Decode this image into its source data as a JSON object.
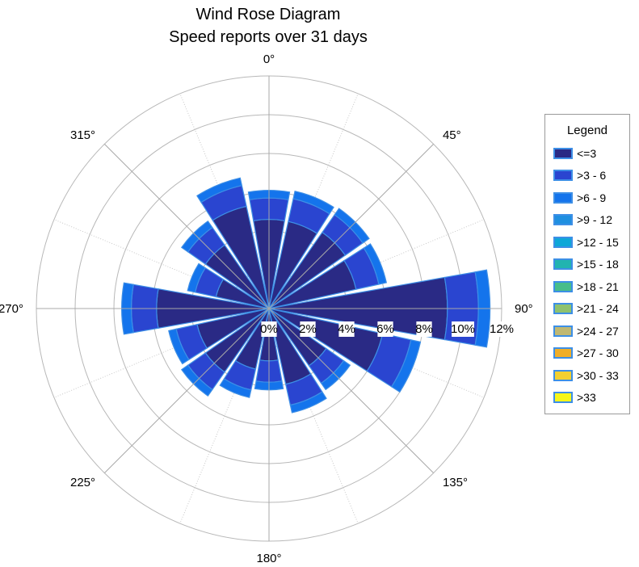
{
  "chart_data": {
    "type": "wind-rose",
    "title": "Wind Rose Diagram",
    "subtitle": "Speed reports over 31 days",
    "radial_ticks": [
      "0%",
      "2%",
      "4%",
      "6%",
      "8%",
      "10%",
      "12%"
    ],
    "radial_max": 12,
    "direction_labels": [
      {
        "angle": 0,
        "label": "0°"
      },
      {
        "angle": 45,
        "label": "45°"
      },
      {
        "angle": 90,
        "label": "90°"
      },
      {
        "angle": 135,
        "label": "135°"
      },
      {
        "angle": 180,
        "label": "180°"
      },
      {
        "angle": 225,
        "label": "225°"
      },
      {
        "angle": 270,
        "label": "270°"
      },
      {
        "angle": 315,
        "label": "315°"
      }
    ],
    "legend": {
      "title": "Legend",
      "placement": "right",
      "items": [
        {
          "label": "<=3",
          "color": "#2a2a85"
        },
        {
          "label": ">3 - 6",
          "color": "#2a45d0"
        },
        {
          "label": ">6 - 9",
          "color": "#1474ec"
        },
        {
          "label": ">9 - 12",
          "color": "#1f8fe0"
        },
        {
          "label": ">12 - 15",
          "color": "#0ea7d8"
        },
        {
          "label": ">15 - 18",
          "color": "#22b4b0"
        },
        {
          "label": ">18 - 21",
          "color": "#48bd8a"
        },
        {
          "label": ">21 - 24",
          "color": "#8fc26e"
        },
        {
          "label": ">24 - 27",
          "color": "#c0b872"
        },
        {
          "label": ">27 - 30",
          "color": "#f0ae28"
        },
        {
          "label": ">30 - 33",
          "color": "#f2d030"
        },
        {
          "label": ">33",
          "color": "#f6f61a"
        }
      ]
    },
    "sector_width_deg": 22.5,
    "series": [
      {
        "name": "<=3",
        "values": [
          4.6,
          4.6,
          4.8,
          4.6,
          9.2,
          6.0,
          3.6,
          4.0,
          2.7,
          3.2,
          4.0,
          3.8,
          5.8,
          2.8,
          4.0,
          5.4
        ]
      },
      {
        "name": ">3 - 6",
        "values": [
          1.1,
          1.2,
          1.1,
          1.2,
          1.6,
          1.5,
          1.1,
          1.1,
          1.1,
          1.1,
          1.1,
          1.1,
          1.3,
          1.1,
          1.1,
          1.1
        ]
      },
      {
        "name": ">6 - 9",
        "values": [
          0.4,
          0.4,
          0.4,
          0.4,
          0.6,
          0.5,
          0.4,
          0.4,
          0.4,
          0.4,
          0.4,
          0.4,
          0.5,
          0.4,
          0.4,
          0.4
        ]
      }
    ]
  }
}
